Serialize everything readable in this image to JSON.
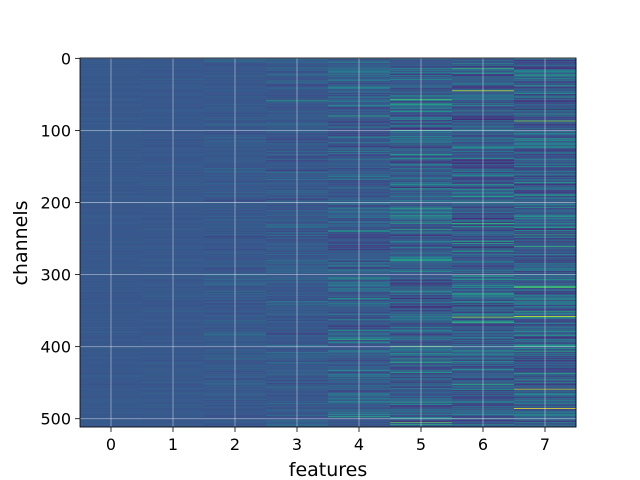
{
  "chart_data": {
    "type": "heatmap",
    "title": "",
    "xlabel": "features",
    "ylabel": "channels",
    "x_categories": [
      "0",
      "1",
      "2",
      "3",
      "4",
      "5",
      "6",
      "7"
    ],
    "x_tick_labels": [
      "0",
      "1",
      "2",
      "3",
      "4",
      "5",
      "6",
      "7"
    ],
    "y_tick_labels": [
      "0",
      "100",
      "200",
      "300",
      "400",
      "500"
    ],
    "ylim": [
      511.5,
      -0.5
    ],
    "rows": 512,
    "grid": true,
    "colormap": "viridis",
    "value_range": [
      0,
      1
    ],
    "background_level": 0.28,
    "feature_spread": [
      0.015,
      0.02,
      0.04,
      0.06,
      0.09,
      0.13,
      0.14,
      0.15
    ],
    "highlights": [
      {
        "feature": 3,
        "channel": 58,
        "value": 0.55
      },
      {
        "feature": 4,
        "channel": 80,
        "value": 0.62
      },
      {
        "feature": 4,
        "channel": 240,
        "value": 0.52
      },
      {
        "feature": 4,
        "channel": 390,
        "value": 0.6
      },
      {
        "feature": 4,
        "channel": 497,
        "value": 0.62
      },
      {
        "feature": 5,
        "channel": 57,
        "value": 0.7
      },
      {
        "feature": 5,
        "channel": 100,
        "value": 0.62
      },
      {
        "feature": 5,
        "channel": 208,
        "value": 0.62
      },
      {
        "feature": 5,
        "channel": 280,
        "value": 0.6
      },
      {
        "feature": 5,
        "channel": 400,
        "value": 0.72
      },
      {
        "feature": 5,
        "channel": 505,
        "value": 0.75
      },
      {
        "feature": 5,
        "channel": 508,
        "value": 0.62
      },
      {
        "feature": 6,
        "channel": 14,
        "value": 0.65
      },
      {
        "feature": 6,
        "channel": 45,
        "value": 0.92
      },
      {
        "feature": 6,
        "channel": 262,
        "value": 0.0
      },
      {
        "feature": 6,
        "channel": 359,
        "value": 0.85
      },
      {
        "feature": 6,
        "channel": 452,
        "value": 0.65
      },
      {
        "feature": 7,
        "channel": 87,
        "value": 0.82
      },
      {
        "feature": 7,
        "channel": 244,
        "value": 0.62
      },
      {
        "feature": 7,
        "channel": 318,
        "value": 0.7
      },
      {
        "feature": 7,
        "channel": 358,
        "value": 0.96
      },
      {
        "feature": 7,
        "channel": 459,
        "value": 0.9
      },
      {
        "feature": 7,
        "channel": 486,
        "value": 1.0
      }
    ]
  }
}
